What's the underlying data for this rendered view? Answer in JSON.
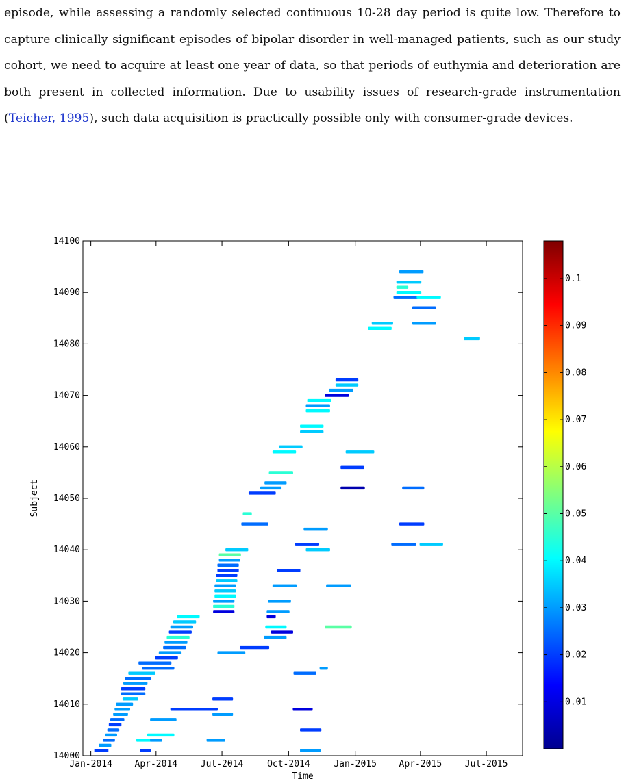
{
  "paragraph": {
    "before_citation": "episode, while assessing a randomly selected continuous 10-28 day period is quite low. Therefore to capture clinically significant episodes of bipolar disorder in well-managed patients, such as our study cohort, we need to acquire at least one year of data, so that periods of euthymia and deterioration are both present in collected information. Due to usability issues of research-grade instrumentation (",
    "citation": "Teicher, 1995",
    "after_citation": "), such data acquisition is practically possible only with consumer-grade devices."
  },
  "colors": {
    "citation": "#1a33cc",
    "text": "#111111"
  },
  "chart_data": {
    "type": "scatter",
    "title": "",
    "xlabel": "Time",
    "ylabel": "Subject",
    "x_ticks": [
      "Jan-2014",
      "Apr-2014",
      "Jul-2014",
      "Oct-2014",
      "Jan-2015",
      "Apr-2015",
      "Jul-2015"
    ],
    "y_ticks": [
      14000,
      14010,
      14020,
      14030,
      14040,
      14050,
      14060,
      14070,
      14080,
      14090,
      14100
    ],
    "xlim": [
      "2013-12-21",
      "2015-08-20"
    ],
    "ylim": [
      14000,
      14100
    ],
    "grid": false,
    "colormap": "jet",
    "colorbar": {
      "ticks": [
        "0.01",
        "0.02",
        "0.03",
        "0.04",
        "0.05",
        "0.06",
        "0.07",
        "0.08",
        "0.09",
        "0.1"
      ],
      "range": [
        0,
        0.108
      ]
    },
    "note": "each row = one subject's recording period; point colour = measured value",
    "segments": [
      {
        "subject": 14001,
        "start": "2014-01-07",
        "end": "2014-01-24",
        "value": 0.02
      },
      {
        "subject": 14001,
        "start": "2014-03-11",
        "end": "2014-03-24",
        "value": 0.02
      },
      {
        "subject": 14001,
        "start": "2014-10-18",
        "end": "2014-11-13",
        "value": 0.03
      },
      {
        "subject": 14002,
        "start": "2014-01-13",
        "end": "2014-01-28",
        "value": 0.03
      },
      {
        "subject": 14003,
        "start": "2014-01-19",
        "end": "2014-02-02",
        "value": 0.025
      },
      {
        "subject": 14003,
        "start": "2014-03-06",
        "end": "2014-03-25",
        "value": 0.04
      },
      {
        "subject": 14003,
        "start": "2014-03-25",
        "end": "2014-04-08",
        "value": 0.03
      },
      {
        "subject": 14003,
        "start": "2014-06-11",
        "end": "2014-07-04",
        "value": 0.03
      },
      {
        "subject": 14004,
        "start": "2014-01-22",
        "end": "2014-02-05",
        "value": 0.03
      },
      {
        "subject": 14004,
        "start": "2014-03-21",
        "end": "2014-04-25",
        "value": 0.04
      },
      {
        "subject": 14005,
        "start": "2014-01-25",
        "end": "2014-02-08",
        "value": 0.025
      },
      {
        "subject": 14005,
        "start": "2014-10-18",
        "end": "2014-11-14",
        "value": 0.02
      },
      {
        "subject": 14006,
        "start": "2014-01-27",
        "end": "2014-02-11",
        "value": 0.02
      },
      {
        "subject": 14007,
        "start": "2014-01-29",
        "end": "2014-02-15",
        "value": 0.025
      },
      {
        "subject": 14007,
        "start": "2014-03-25",
        "end": "2014-04-28",
        "value": 0.03
      },
      {
        "subject": 14008,
        "start": "2014-02-02",
        "end": "2014-02-20",
        "value": 0.03
      },
      {
        "subject": 14008,
        "start": "2014-06-19",
        "end": "2014-07-15",
        "value": 0.03
      },
      {
        "subject": 14009,
        "start": "2014-02-04",
        "end": "2014-02-23",
        "value": 0.03
      },
      {
        "subject": 14009,
        "start": "2014-04-22",
        "end": "2014-06-24",
        "value": 0.02
      },
      {
        "subject": 14009,
        "start": "2014-10-08",
        "end": "2014-11-02",
        "value": 0.01
      },
      {
        "subject": 14010,
        "start": "2014-02-06",
        "end": "2014-02-27",
        "value": 0.03
      },
      {
        "subject": 14011,
        "start": "2014-02-15",
        "end": "2014-03-06",
        "value": 0.035
      },
      {
        "subject": 14011,
        "start": "2014-06-19",
        "end": "2014-07-15",
        "value": 0.02
      },
      {
        "subject": 14012,
        "start": "2014-02-13",
        "end": "2014-03-16",
        "value": 0.025
      },
      {
        "subject": 14013,
        "start": "2014-02-13",
        "end": "2014-03-16",
        "value": 0.02
      },
      {
        "subject": 14014,
        "start": "2014-02-16",
        "end": "2014-03-19",
        "value": 0.03
      },
      {
        "subject": 14015,
        "start": "2014-02-18",
        "end": "2014-03-24",
        "value": 0.025
      },
      {
        "subject": 14016,
        "start": "2014-02-23",
        "end": "2014-03-30",
        "value": 0.035
      },
      {
        "subject": 14016,
        "start": "2014-10-09",
        "end": "2014-11-07",
        "value": 0.025
      },
      {
        "subject": 14017,
        "start": "2014-03-14",
        "end": "2014-04-25",
        "value": 0.025
      },
      {
        "subject": 14017,
        "start": "2014-11-14",
        "end": "2014-11-23",
        "value": 0.03
      },
      {
        "subject": 14018,
        "start": "2014-03-09",
        "end": "2014-04-21",
        "value": 0.025
      },
      {
        "subject": 14019,
        "start": "2014-04-01",
        "end": "2014-04-30",
        "value": 0.02
      },
      {
        "subject": 14020,
        "start": "2014-04-06",
        "end": "2014-05-05",
        "value": 0.03
      },
      {
        "subject": 14020,
        "start": "2014-06-26",
        "end": "2014-08-01",
        "value": 0.03
      },
      {
        "subject": 14021,
        "start": "2014-04-12",
        "end": "2014-05-11",
        "value": 0.025
      },
      {
        "subject": 14021,
        "start": "2014-07-27",
        "end": "2014-09-03",
        "value": 0.02
      },
      {
        "subject": 14022,
        "start": "2014-04-14",
        "end": "2014-05-13",
        "value": 0.03
      },
      {
        "subject": 14023,
        "start": "2014-04-17",
        "end": "2014-05-16",
        "value": 0.045
      },
      {
        "subject": 14023,
        "start": "2014-08-29",
        "end": "2014-09-27",
        "value": 0.03
      },
      {
        "subject": 14024,
        "start": "2014-04-20",
        "end": "2014-05-19",
        "value": 0.02
      },
      {
        "subject": 14024,
        "start": "2014-09-08",
        "end": "2014-10-06",
        "value": 0.01
      },
      {
        "subject": 14025,
        "start": "2014-04-22",
        "end": "2014-05-21",
        "value": 0.03
      },
      {
        "subject": 14025,
        "start": "2014-08-31",
        "end": "2014-09-27",
        "value": 0.04
      },
      {
        "subject": 14025,
        "start": "2014-11-21",
        "end": "2014-12-26",
        "value": 0.05
      },
      {
        "subject": 14026,
        "start": "2014-04-26",
        "end": "2014-05-25",
        "value": 0.035
      },
      {
        "subject": 14027,
        "start": "2014-05-01",
        "end": "2014-05-30",
        "value": 0.04
      },
      {
        "subject": 14027,
        "start": "2014-09-02",
        "end": "2014-09-12",
        "value": 0.01
      },
      {
        "subject": 14028,
        "start": "2014-06-20",
        "end": "2014-07-17",
        "value": 0.01
      },
      {
        "subject": 14028,
        "start": "2014-09-02",
        "end": "2014-10-01",
        "value": 0.03
      },
      {
        "subject": 14029,
        "start": "2014-06-20",
        "end": "2014-07-17",
        "value": 0.045
      },
      {
        "subject": 14030,
        "start": "2014-06-20",
        "end": "2014-07-17",
        "value": 0.03
      },
      {
        "subject": 14030,
        "start": "2014-09-04",
        "end": "2014-10-03",
        "value": 0.03
      },
      {
        "subject": 14031,
        "start": "2014-06-22",
        "end": "2014-07-19",
        "value": 0.04
      },
      {
        "subject": 14032,
        "start": "2014-06-22",
        "end": "2014-07-19",
        "value": 0.035
      },
      {
        "subject": 14033,
        "start": "2014-06-22",
        "end": "2014-07-19",
        "value": 0.03
      },
      {
        "subject": 14033,
        "start": "2014-09-10",
        "end": "2014-10-11",
        "value": 0.03
      },
      {
        "subject": 14033,
        "start": "2014-11-23",
        "end": "2014-12-25",
        "value": 0.03
      },
      {
        "subject": 14034,
        "start": "2014-06-24",
        "end": "2014-07-21",
        "value": 0.035
      },
      {
        "subject": 14035,
        "start": "2014-06-24",
        "end": "2014-07-21",
        "value": 0.02
      },
      {
        "subject": 14036,
        "start": "2014-06-26",
        "end": "2014-07-23",
        "value": 0.02
      },
      {
        "subject": 14036,
        "start": "2014-09-16",
        "end": "2014-10-16",
        "value": 0.02
      },
      {
        "subject": 14037,
        "start": "2014-06-26",
        "end": "2014-07-23",
        "value": 0.025
      },
      {
        "subject": 14038,
        "start": "2014-06-28",
        "end": "2014-07-25",
        "value": 0.03
      },
      {
        "subject": 14039,
        "start": "2014-06-28",
        "end": "2014-07-26",
        "value": 0.05
      },
      {
        "subject": 14040,
        "start": "2014-07-07",
        "end": "2014-08-05",
        "value": 0.035
      },
      {
        "subject": 14040,
        "start": "2014-10-26",
        "end": "2014-11-26",
        "value": 0.035
      },
      {
        "subject": 14041,
        "start": "2014-10-11",
        "end": "2014-11-11",
        "value": 0.02
      },
      {
        "subject": 14041,
        "start": "2015-02-21",
        "end": "2015-03-25",
        "value": 0.025
      },
      {
        "subject": 14041,
        "start": "2015-04-01",
        "end": "2015-05-01",
        "value": 0.035
      },
      {
        "subject": 14044,
        "start": "2014-10-23",
        "end": "2014-11-23",
        "value": 0.03
      },
      {
        "subject": 14045,
        "start": "2014-07-29",
        "end": "2014-09-02",
        "value": 0.025
      },
      {
        "subject": 14045,
        "start": "2015-03-04",
        "end": "2015-04-05",
        "value": 0.02
      },
      {
        "subject": 14047,
        "start": "2014-07-31",
        "end": "2014-08-10",
        "value": 0.045
      },
      {
        "subject": 14051,
        "start": "2014-08-08",
        "end": "2014-09-12",
        "value": 0.02
      },
      {
        "subject": 14052,
        "start": "2014-08-24",
        "end": "2014-09-20",
        "value": 0.03
      },
      {
        "subject": 14052,
        "start": "2014-12-13",
        "end": "2015-01-13",
        "value": 0.005
      },
      {
        "subject": 14052,
        "start": "2015-03-08",
        "end": "2015-04-05",
        "value": 0.025
      },
      {
        "subject": 14053,
        "start": "2014-08-30",
        "end": "2014-09-27",
        "value": 0.03
      },
      {
        "subject": 14055,
        "start": "2014-09-05",
        "end": "2014-10-06",
        "value": 0.045
      },
      {
        "subject": 14056,
        "start": "2014-12-13",
        "end": "2015-01-12",
        "value": 0.02
      },
      {
        "subject": 14059,
        "start": "2014-09-10",
        "end": "2014-10-10",
        "value": 0.04
      },
      {
        "subject": 14059,
        "start": "2014-12-20",
        "end": "2015-01-26",
        "value": 0.035
      },
      {
        "subject": 14060,
        "start": "2014-09-19",
        "end": "2014-10-19",
        "value": 0.035
      },
      {
        "subject": 14063,
        "start": "2014-10-18",
        "end": "2014-11-17",
        "value": 0.035
      },
      {
        "subject": 14064,
        "start": "2014-10-18",
        "end": "2014-11-17",
        "value": 0.04
      },
      {
        "subject": 14067,
        "start": "2014-10-26",
        "end": "2014-11-26",
        "value": 0.04
      },
      {
        "subject": 14068,
        "start": "2014-10-26",
        "end": "2014-11-26",
        "value": 0.03
      },
      {
        "subject": 14069,
        "start": "2014-10-28",
        "end": "2014-11-28",
        "value": 0.04
      },
      {
        "subject": 14070,
        "start": "2014-11-21",
        "end": "2014-12-22",
        "value": 0.01
      },
      {
        "subject": 14071,
        "start": "2014-11-27",
        "end": "2014-12-28",
        "value": 0.03
      },
      {
        "subject": 14072,
        "start": "2014-12-06",
        "end": "2015-01-04",
        "value": 0.035
      },
      {
        "subject": 14073,
        "start": "2014-12-06",
        "end": "2015-01-04",
        "value": 0.02
      },
      {
        "subject": 14081,
        "start": "2015-06-01",
        "end": "2015-06-21",
        "value": 0.035
      },
      {
        "subject": 14083,
        "start": "2015-01-20",
        "end": "2015-02-19",
        "value": 0.04
      },
      {
        "subject": 14084,
        "start": "2015-01-25",
        "end": "2015-02-21",
        "value": 0.035
      },
      {
        "subject": 14084,
        "start": "2015-03-22",
        "end": "2015-04-21",
        "value": 0.03
      },
      {
        "subject": 14087,
        "start": "2015-03-22",
        "end": "2015-04-21",
        "value": 0.025
      },
      {
        "subject": 14089,
        "start": "2015-02-24",
        "end": "2015-03-28",
        "value": 0.025
      },
      {
        "subject": 14089,
        "start": "2015-03-28",
        "end": "2015-04-28",
        "value": 0.04
      },
      {
        "subject": 14090,
        "start": "2015-02-28",
        "end": "2015-04-01",
        "value": 0.04
      },
      {
        "subject": 14091,
        "start": "2015-02-28",
        "end": "2015-03-14",
        "value": 0.045
      },
      {
        "subject": 14092,
        "start": "2015-02-28",
        "end": "2015-04-01",
        "value": 0.035
      },
      {
        "subject": 14094,
        "start": "2015-03-04",
        "end": "2015-04-04",
        "value": 0.03
      }
    ]
  }
}
